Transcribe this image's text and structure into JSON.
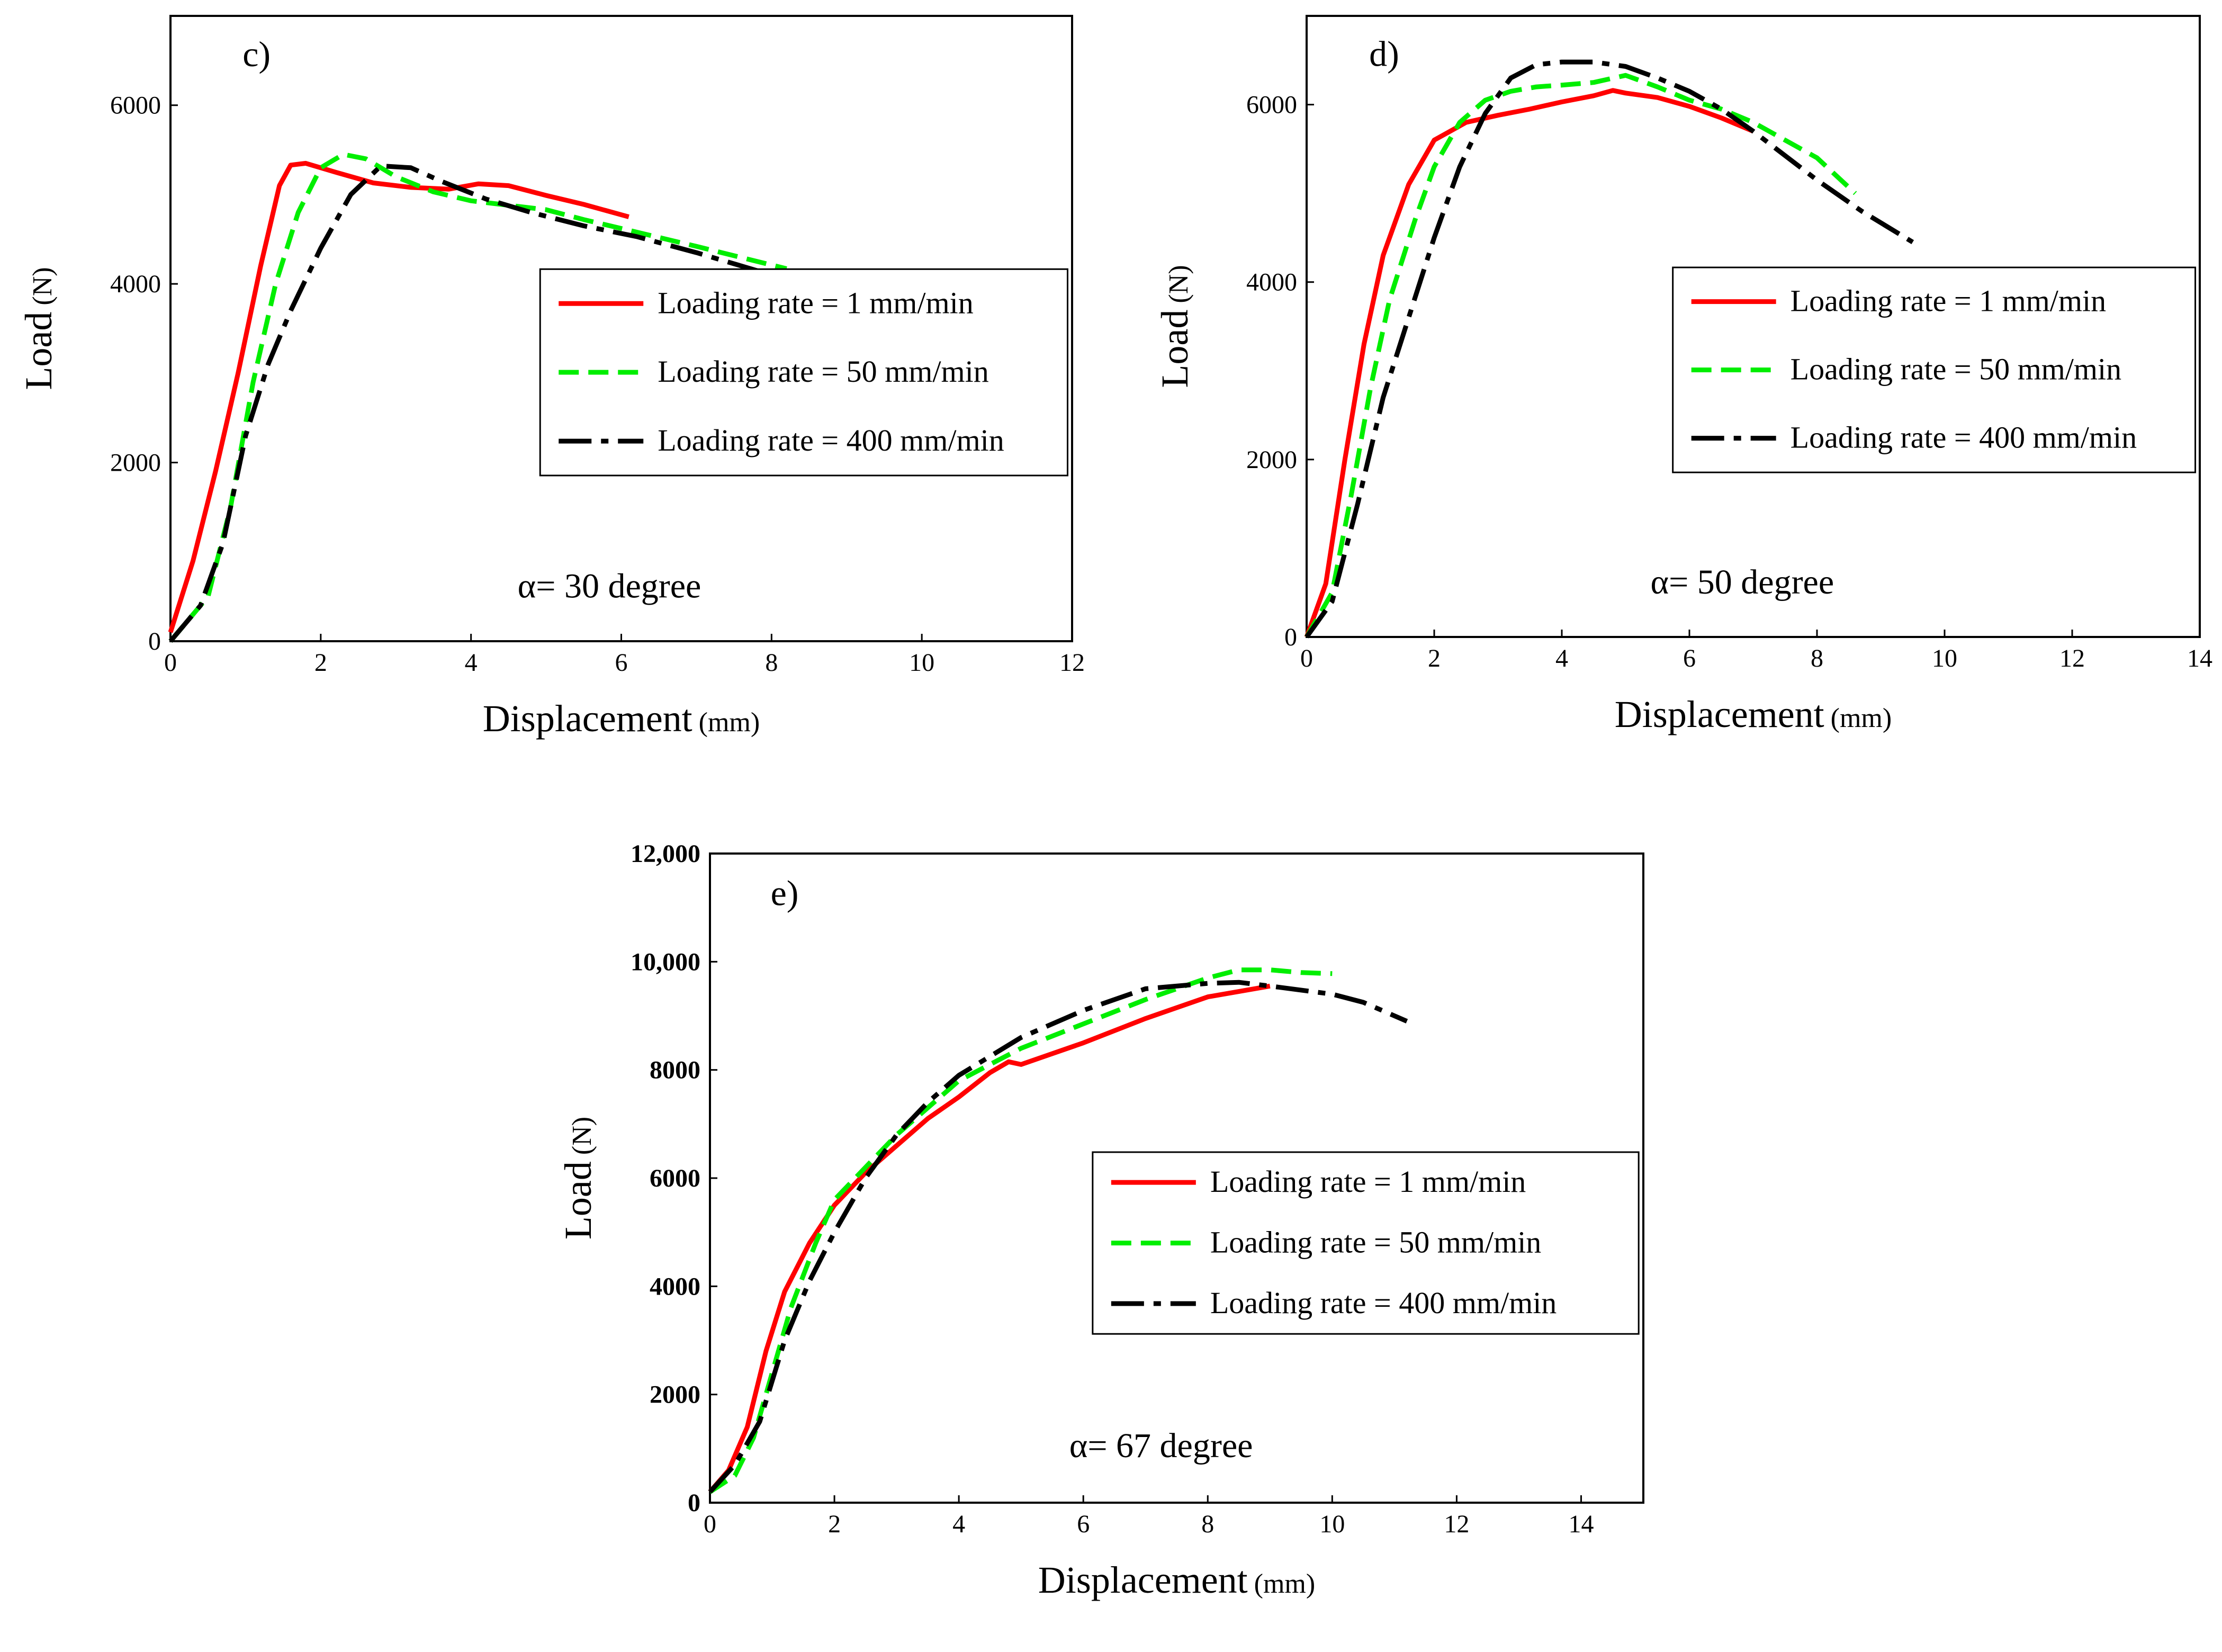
{
  "chart_data": [
    {
      "type": "line",
      "panel_label": "c)",
      "annotation": "α= 30 degree",
      "xlabel": "Displacement",
      "xlabel_unit": "(mm)",
      "ylabel": "Load",
      "ylabel_unit": "(N)",
      "xlim": [
        0,
        12
      ],
      "ylim": [
        0,
        6000
      ],
      "ylim_plot_max": 7000,
      "xticks": [
        "0",
        "2",
        "4",
        "6",
        "8",
        "10",
        "12"
      ],
      "yticks": [
        "0",
        "2000",
        "4000",
        "6000"
      ],
      "legend_position": "right-middle",
      "grid": false,
      "series": [
        {
          "name": "Loading rate = 1 mm/min",
          "color": "#ff0000",
          "style": "solid",
          "x": [
            0,
            0.3,
            0.6,
            0.9,
            1.2,
            1.45,
            1.6,
            1.8,
            2.2,
            2.7,
            3.2,
            3.7,
            4.1,
            4.5,
            5.0,
            5.5,
            6.1
          ],
          "y": [
            100,
            900,
            1900,
            3000,
            4200,
            5100,
            5330,
            5350,
            5250,
            5130,
            5080,
            5060,
            5120,
            5100,
            4990,
            4890,
            4750
          ]
        },
        {
          "name": "Loading rate = 50 mm/min",
          "color": "#00ee00",
          "style": "dashed",
          "x": [
            0,
            0.5,
            0.8,
            1.1,
            1.4,
            1.7,
            2.0,
            2.3,
            2.6,
            3.0,
            3.5,
            4.0,
            4.5,
            5.0,
            5.5,
            6.0,
            7.0,
            8.2
          ],
          "y": [
            0,
            500,
            1500,
            2900,
            4000,
            4800,
            5300,
            5450,
            5400,
            5200,
            5030,
            4930,
            4880,
            4830,
            4720,
            4620,
            4420,
            4170
          ]
        },
        {
          "name": "Loading rate = 400 mm/min",
          "color": "#000000",
          "style": "longdash",
          "x": [
            0,
            0.4,
            0.7,
            1.0,
            1.3,
            1.6,
            2.0,
            2.4,
            2.8,
            3.2,
            3.6,
            4.2,
            4.8,
            5.5,
            6.2,
            7.0,
            7.8,
            8.7
          ],
          "y": [
            0,
            400,
            1100,
            2300,
            3100,
            3700,
            4400,
            5000,
            5320,
            5300,
            5150,
            4950,
            4800,
            4650,
            4530,
            4350,
            4150,
            3880
          ]
        }
      ]
    },
    {
      "type": "line",
      "panel_label": "d)",
      "annotation": "α= 50 degree",
      "xlabel": "Displacement",
      "xlabel_unit": "(mm)",
      "ylabel": "Load",
      "ylabel_unit": "(N)",
      "xlim": [
        0,
        14
      ],
      "ylim": [
        0,
        6000
      ],
      "ylim_plot_max": 7000,
      "xticks": [
        "0",
        "2",
        "4",
        "6",
        "8",
        "10",
        "12",
        "14"
      ],
      "yticks": [
        "0",
        "2000",
        "4000",
        "6000"
      ],
      "legend_position": "right-middle",
      "grid": false,
      "series": [
        {
          "name": "Loading rate = 1 mm/min",
          "color": "#ff0000",
          "style": "solid",
          "x": [
            0,
            0.3,
            0.6,
            0.9,
            1.2,
            1.6,
            2.0,
            2.5,
            3.0,
            3.5,
            4.0,
            4.5,
            4.8,
            5.0,
            5.5,
            6.0,
            6.5,
            7.0
          ],
          "y": [
            0,
            600,
            2000,
            3300,
            4300,
            5100,
            5600,
            5800,
            5880,
            5950,
            6030,
            6100,
            6160,
            6130,
            6080,
            5980,
            5850,
            5700
          ]
        },
        {
          "name": "Loading rate = 50 mm/min",
          "color": "#00ee00",
          "style": "dashed",
          "x": [
            0,
            0.4,
            0.7,
            1.0,
            1.3,
            1.7,
            2.0,
            2.4,
            2.8,
            3.2,
            3.6,
            4.0,
            4.5,
            5.0,
            5.5,
            6.0,
            6.5,
            7.0,
            8.0,
            8.6
          ],
          "y": [
            0,
            500,
            1600,
            2800,
            3800,
            4700,
            5300,
            5800,
            6050,
            6150,
            6200,
            6220,
            6250,
            6330,
            6200,
            6050,
            5950,
            5800,
            5400,
            5000
          ]
        },
        {
          "name": "Loading rate = 400 mm/min",
          "color": "#000000",
          "style": "longdash",
          "x": [
            0,
            0.4,
            0.8,
            1.2,
            1.6,
            2.0,
            2.4,
            2.8,
            3.2,
            3.6,
            4.0,
            4.5,
            5.0,
            5.5,
            6.0,
            6.5,
            7.0,
            8.0,
            8.7,
            9.5
          ],
          "y": [
            0,
            400,
            1500,
            2700,
            3600,
            4500,
            5300,
            5900,
            6300,
            6450,
            6480,
            6480,
            6430,
            6300,
            6150,
            5950,
            5700,
            5150,
            4800,
            4450
          ]
        }
      ]
    },
    {
      "type": "line",
      "panel_label": "e)",
      "annotation": "α= 67 degree",
      "xlabel": "Displacement",
      "xlabel_unit": "(mm)",
      "ylabel": "Load",
      "ylabel_unit": "(N)",
      "xlim": [
        0,
        15
      ],
      "ylim": [
        0,
        12000
      ],
      "xticks": [
        "0",
        "2",
        "4",
        "6",
        "8",
        "10",
        "12",
        "14"
      ],
      "yticks": [
        "0",
        "2000",
        "4000",
        "6000",
        "8000",
        "10,000",
        "12,000"
      ],
      "legend_position": "right-middle",
      "grid": false,
      "series": [
        {
          "name": "Loading rate = 1 mm/min",
          "color": "#ff0000",
          "style": "solid",
          "x": [
            0,
            0.3,
            0.6,
            0.9,
            1.2,
            1.6,
            2.0,
            2.5,
            3.0,
            3.5,
            4.0,
            4.5,
            4.8,
            5.0,
            5.5,
            6.0,
            7.0,
            8.0,
            9.0
          ],
          "y": [
            200,
            600,
            1400,
            2800,
            3900,
            4800,
            5500,
            6100,
            6600,
            7100,
            7500,
            7950,
            8150,
            8100,
            8300,
            8500,
            8950,
            9350,
            9550
          ]
        },
        {
          "name": "Loading rate = 50 mm/min",
          "color": "#00ee00",
          "style": "dashed",
          "x": [
            0,
            0.4,
            0.7,
            1.0,
            1.3,
            1.7,
            2.0,
            2.5,
            3.0,
            3.5,
            4.0,
            4.5,
            5.0,
            6.0,
            7.0,
            8.0,
            8.5,
            9.0,
            9.5,
            10.0
          ],
          "y": [
            200,
            500,
            1200,
            2400,
            3600,
            4800,
            5600,
            6200,
            6800,
            7300,
            7800,
            8100,
            8400,
            8850,
            9300,
            9700,
            9850,
            9850,
            9800,
            9780
          ]
        },
        {
          "name": "Loading rate = 400 mm/min",
          "color": "#000000",
          "style": "longdash",
          "x": [
            0,
            0.4,
            0.8,
            1.2,
            1.6,
            2.0,
            2.5,
            3.0,
            3.5,
            4.0,
            5.0,
            6.0,
            7.0,
            8.0,
            8.5,
            9.0,
            10.0,
            10.5,
            11.2
          ],
          "y": [
            200,
            700,
            1500,
            3000,
            4100,
            5000,
            6000,
            6800,
            7400,
            7900,
            8600,
            9100,
            9500,
            9600,
            9620,
            9550,
            9400,
            9250,
            8900
          ]
        }
      ]
    }
  ]
}
